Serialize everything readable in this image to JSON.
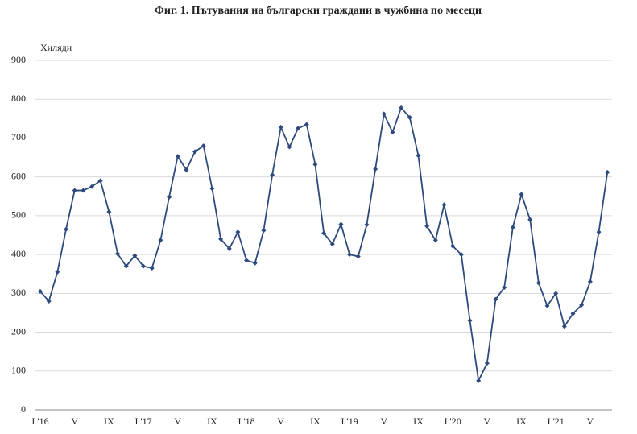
{
  "chart_data": {
    "type": "line",
    "title": "Фиг. 1. Пътувания на български граждани в чужбина по месеци",
    "y_axis_label": "Хиляди",
    "categories": [
      "I '16",
      null,
      null,
      null,
      "V",
      null,
      null,
      null,
      "IX",
      null,
      null,
      null,
      "I '17",
      null,
      null,
      null,
      "V",
      null,
      null,
      null,
      "IX",
      null,
      null,
      null,
      "I '18",
      null,
      null,
      null,
      "V",
      null,
      null,
      null,
      "IX",
      null,
      null,
      null,
      "I '19",
      null,
      null,
      null,
      "V",
      null,
      null,
      null,
      "IX",
      null,
      null,
      null,
      "I '20",
      null,
      null,
      null,
      "V",
      null,
      null,
      null,
      "IX",
      null,
      null,
      null,
      "I '21",
      null,
      null,
      null,
      "V",
      null,
      null
    ],
    "series": [
      {
        "name": "Пътувания",
        "color": "#2e4a7d",
        "values": [
          305,
          280,
          355,
          465,
          565,
          565,
          575,
          590,
          510,
          402,
          370,
          397,
          370,
          365,
          437,
          548,
          653,
          618,
          665,
          680,
          570,
          440,
          415,
          458,
          385,
          378,
          462,
          605,
          728,
          677,
          725,
          735,
          632,
          455,
          427,
          478,
          400,
          395,
          477,
          620,
          762,
          715,
          778,
          753,
          655,
          473,
          437,
          528,
          422,
          400,
          230,
          75,
          120,
          285,
          315,
          470,
          555,
          490,
          327,
          268,
          300,
          215,
          248,
          270,
          330,
          458,
          612
        ]
      }
    ],
    "ylim": [
      0,
      900
    ],
    "yticks": [
      0,
      100,
      200,
      300,
      400,
      500,
      600,
      700,
      800,
      900
    ],
    "grid": true
  }
}
